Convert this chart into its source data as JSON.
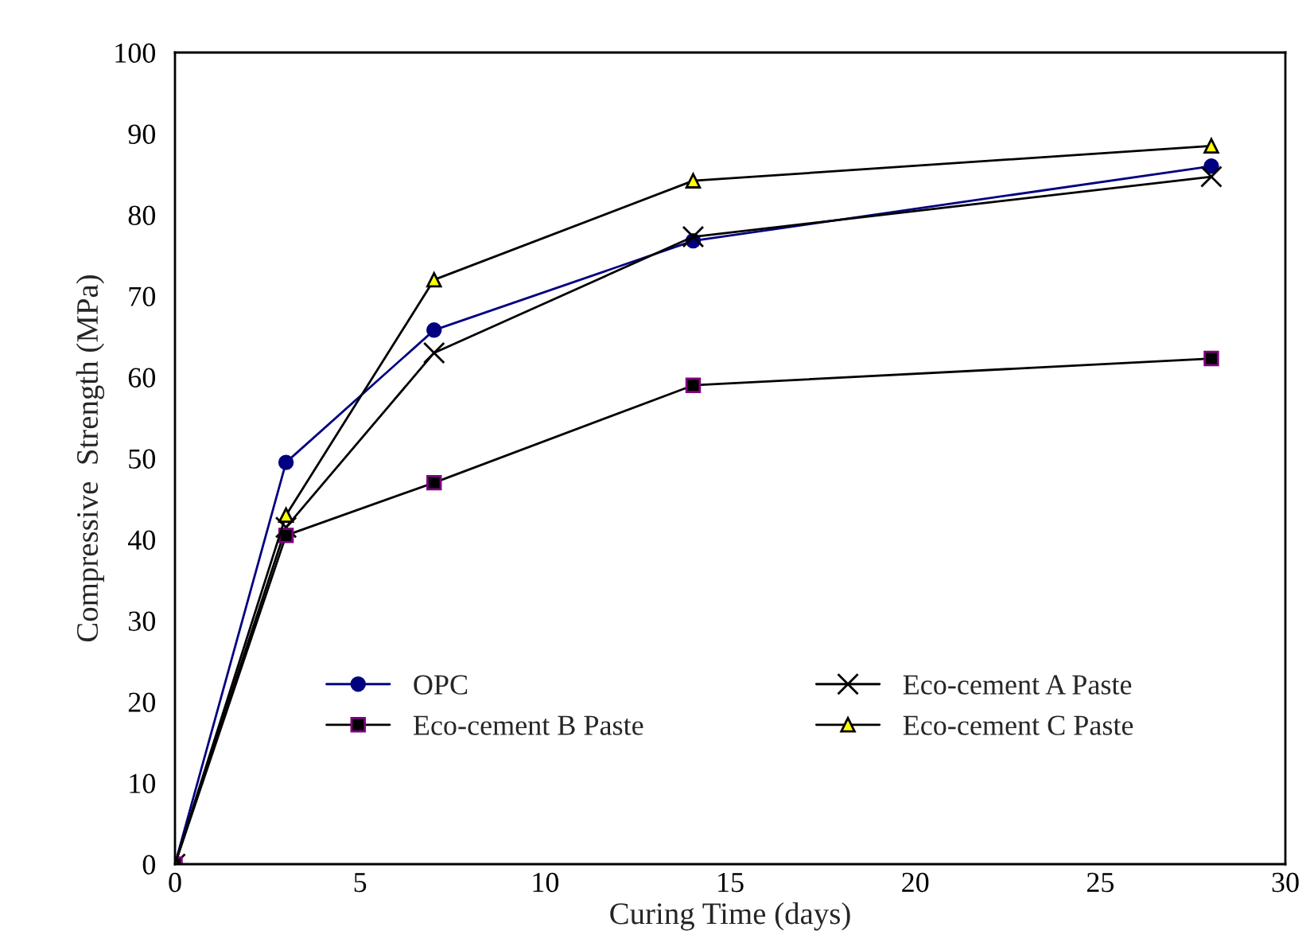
{
  "chart_data": {
    "type": "line",
    "xlabel": "Curing Time (days)",
    "ylabel": "Compressive  Strength (MPa)",
    "x": [
      0,
      3,
      7,
      14,
      28
    ],
    "series": [
      {
        "name": "OPC",
        "color": "#000080",
        "marker": "circle",
        "values": [
          0,
          49.5,
          65.8,
          76.8,
          86.0
        ]
      },
      {
        "name": "Eco-cement A Paste",
        "color": "#000000",
        "marker": "cross",
        "values": [
          0,
          41.5,
          63.0,
          77.3,
          84.7
        ]
      },
      {
        "name": "Eco-cement B Paste",
        "color": "#000000",
        "marker": "square",
        "values": [
          0,
          40.5,
          47.0,
          59.0,
          62.3
        ]
      },
      {
        "name": "Eco-cement C Paste",
        "color": "#000000",
        "marker": "triangle",
        "values": [
          0,
          43.0,
          72.0,
          84.2,
          88.5
        ]
      }
    ],
    "xlim": [
      0,
      30
    ],
    "xticks": [
      0,
      5,
      10,
      15,
      20,
      25,
      30
    ],
    "ylim": [
      0,
      100
    ],
    "yticks": [
      0,
      10,
      20,
      30,
      40,
      50,
      60,
      70,
      80,
      90,
      100
    ],
    "grid": false,
    "legend": "bottom",
    "line_style": "solid"
  }
}
